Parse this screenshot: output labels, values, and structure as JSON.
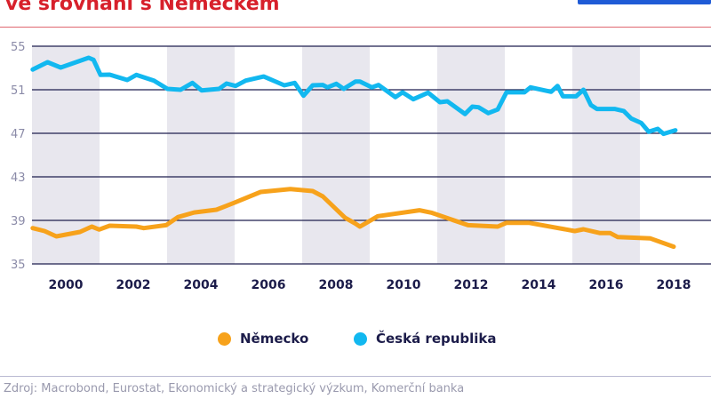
{
  "title": "ve srovnání s Německem",
  "source": "Zdroj: Macrobond, Eurostat, Ekonomický a strategický výzkum, Komerční banka",
  "colors": {
    "title": "#d7202b",
    "germany": "#f7a21b",
    "czech": "#12b8f0",
    "grid": "#1f1f4f",
    "band": "#e8e7ee"
  },
  "chart_data": {
    "type": "line",
    "title": "",
    "xlabel": "",
    "ylabel": "",
    "xlim": [
      1999,
      2019.1
    ],
    "ylim": [
      35,
      55
    ],
    "yticks": [
      55,
      51,
      47,
      43,
      39,
      35
    ],
    "xticks": [
      2000,
      2002,
      2004,
      2006,
      2008,
      2010,
      2012,
      2014,
      2016,
      2018
    ],
    "shaded_bands": [
      [
        1999,
        2001
      ],
      [
        2003,
        2005
      ],
      [
        2007,
        2009
      ],
      [
        2011,
        2013
      ],
      [
        2015,
        2017
      ]
    ],
    "grid": true,
    "legend_position": "bottom",
    "series": [
      {
        "name": "Německo",
        "color": "#f7a21b",
        "points": [
          [
            1999.02,
            38.29
          ],
          [
            1999.37,
            38.02
          ],
          [
            1999.72,
            37.53
          ],
          [
            2000.42,
            37.94
          ],
          [
            2000.77,
            38.43
          ],
          [
            2000.99,
            38.16
          ],
          [
            2001.3,
            38.51
          ],
          [
            2002.09,
            38.43
          ],
          [
            2002.31,
            38.29
          ],
          [
            2002.97,
            38.56
          ],
          [
            2003.32,
            39.3
          ],
          [
            2003.8,
            39.73
          ],
          [
            2004.46,
            39.98
          ],
          [
            2004.98,
            40.61
          ],
          [
            2005.77,
            41.61
          ],
          [
            2006.65,
            41.88
          ],
          [
            2007.31,
            41.69
          ],
          [
            2007.61,
            41.2
          ],
          [
            2008.27,
            39.24
          ],
          [
            2008.58,
            38.7
          ],
          [
            2008.71,
            38.43
          ],
          [
            2009.24,
            39.38
          ],
          [
            2010.47,
            39.93
          ],
          [
            2010.82,
            39.71
          ],
          [
            2011.91,
            38.56
          ],
          [
            2012.79,
            38.43
          ],
          [
            2013.05,
            38.78
          ],
          [
            2013.71,
            38.78
          ],
          [
            2015.07,
            38.02
          ],
          [
            2015.33,
            38.18
          ],
          [
            2015.82,
            37.83
          ],
          [
            2016.12,
            37.83
          ],
          [
            2016.34,
            37.47
          ],
          [
            2017.31,
            37.34
          ],
          [
            2018.0,
            36.58
          ]
        ]
      },
      {
        "name": "Česká republika",
        "color": "#12b8f0",
        "points": [
          [
            1999.02,
            52.85
          ],
          [
            1999.46,
            53.53
          ],
          [
            1999.85,
            53.04
          ],
          [
            2000.68,
            53.94
          ],
          [
            2000.82,
            53.75
          ],
          [
            2001.03,
            52.36
          ],
          [
            2001.3,
            52.39
          ],
          [
            2001.82,
            51.9
          ],
          [
            2002.09,
            52.36
          ],
          [
            2002.61,
            51.84
          ],
          [
            2003.01,
            51.08
          ],
          [
            2003.4,
            51.0
          ],
          [
            2003.75,
            51.63
          ],
          [
            2004.02,
            50.94
          ],
          [
            2004.54,
            51.08
          ],
          [
            2004.76,
            51.57
          ],
          [
            2005.03,
            51.35
          ],
          [
            2005.33,
            51.84
          ],
          [
            2005.86,
            52.22
          ],
          [
            2006.47,
            51.41
          ],
          [
            2006.78,
            51.63
          ],
          [
            2007.04,
            50.45
          ],
          [
            2007.31,
            51.41
          ],
          [
            2007.61,
            51.44
          ],
          [
            2007.75,
            51.22
          ],
          [
            2008.01,
            51.55
          ],
          [
            2008.23,
            51.08
          ],
          [
            2008.58,
            51.76
          ],
          [
            2008.71,
            51.76
          ],
          [
            2009.06,
            51.22
          ],
          [
            2009.26,
            51.44
          ],
          [
            2009.76,
            50.32
          ],
          [
            2009.97,
            50.76
          ],
          [
            2010.29,
            50.13
          ],
          [
            2010.73,
            50.73
          ],
          [
            2011.08,
            49.86
          ],
          [
            2011.3,
            49.94
          ],
          [
            2011.82,
            48.77
          ],
          [
            2012.04,
            49.45
          ],
          [
            2012.22,
            49.39
          ],
          [
            2012.51,
            48.85
          ],
          [
            2012.79,
            49.19
          ],
          [
            2013.05,
            50.76
          ],
          [
            2013.58,
            50.76
          ],
          [
            2013.76,
            51.22
          ],
          [
            2014.37,
            50.81
          ],
          [
            2014.56,
            51.35
          ],
          [
            2014.72,
            50.4
          ],
          [
            2015.11,
            50.4
          ],
          [
            2015.33,
            51.0
          ],
          [
            2015.55,
            49.59
          ],
          [
            2015.73,
            49.24
          ],
          [
            2016.25,
            49.24
          ],
          [
            2016.52,
            49.05
          ],
          [
            2016.74,
            48.36
          ],
          [
            2017.04,
            47.95
          ],
          [
            2017.26,
            47.14
          ],
          [
            2017.53,
            47.41
          ],
          [
            2017.7,
            46.95
          ],
          [
            2018.05,
            47.28
          ]
        ]
      }
    ]
  }
}
